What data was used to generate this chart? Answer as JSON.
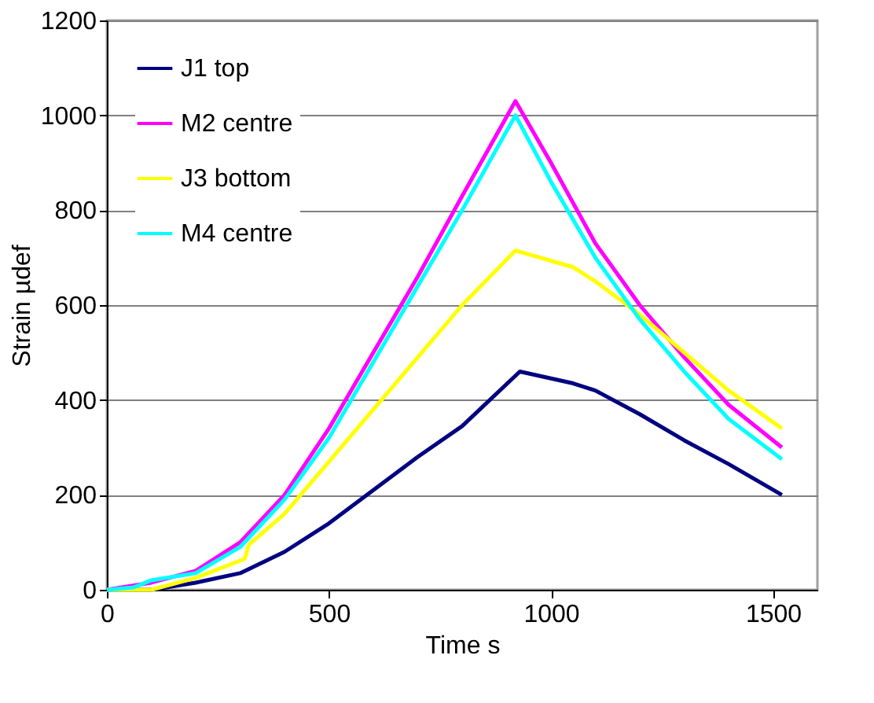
{
  "chart_data": {
    "type": "line",
    "xlabel": "Time s",
    "ylabel": "Strain µdef",
    "xlim": [
      0,
      1600
    ],
    "xticks": [
      0,
      500,
      1000,
      1500
    ],
    "ylim": [
      0,
      1200
    ],
    "yticks": [
      0,
      200,
      400,
      600,
      800,
      1000,
      1200
    ],
    "grid": "y",
    "legend": "top left",
    "marker": "none",
    "line_style": "solid",
    "series": [
      {
        "name": "J1  top",
        "color": "#000080",
        "x": [
          0,
          100,
          200,
          300,
          400,
          500,
          600,
          700,
          800,
          930,
          1050,
          1100,
          1200,
          1300,
          1400,
          1520
        ],
        "values": [
          0,
          0,
          15,
          35,
          80,
          140,
          210,
          280,
          345,
          460,
          435,
          420,
          370,
          315,
          265,
          200
        ]
      },
      {
        "name": "M2  centre",
        "color": "#ff00ff",
        "x": [
          0,
          100,
          200,
          300,
          400,
          500,
          600,
          700,
          800,
          920,
          1000,
          1100,
          1200,
          1300,
          1400,
          1520
        ],
        "values": [
          0,
          15,
          40,
          100,
          200,
          340,
          500,
          660,
          830,
          1030,
          900,
          730,
          600,
          490,
          390,
          300
        ]
      },
      {
        "name": "J3  bottom",
        "color": "#ffff00",
        "x": [
          0,
          100,
          200,
          310,
          320,
          400,
          500,
          600,
          700,
          800,
          920,
          1050,
          1100,
          1200,
          1300,
          1400,
          1520
        ],
        "values": [
          0,
          0,
          25,
          65,
          95,
          160,
          270,
          380,
          490,
          600,
          715,
          680,
          650,
          580,
          500,
          420,
          340
        ]
      },
      {
        "name": "M4  centre",
        "color": "#00ffff",
        "x": [
          0,
          60,
          100,
          200,
          300,
          400,
          500,
          600,
          700,
          800,
          920,
          1000,
          1100,
          1200,
          1300,
          1400,
          1520
        ],
        "values": [
          0,
          5,
          20,
          35,
          90,
          190,
          320,
          480,
          640,
          800,
          1000,
          860,
          700,
          570,
          460,
          360,
          275
        ]
      }
    ]
  }
}
